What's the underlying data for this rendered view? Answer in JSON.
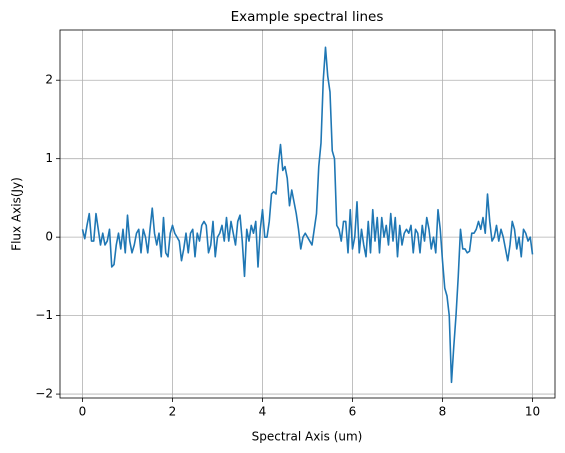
{
  "chart_data": {
    "type": "line",
    "title": "Example spectral lines",
    "xlabel": "Spectral Axis (um)",
    "ylabel": "Flux Axis(Jy)",
    "color": "#1f77b4",
    "grid": true,
    "xlim": [
      -0.5,
      10.5
    ],
    "ylim": [
      -2.05,
      2.64
    ],
    "xticks": [
      0,
      2,
      4,
      6,
      8,
      10
    ],
    "yticks": [
      {
        "value": -2,
        "label": "−2"
      },
      {
        "value": -1,
        "label": "−1"
      },
      0,
      1,
      2
    ],
    "x": [
      0,
      0.05,
      0.1,
      0.15,
      0.2,
      0.25,
      0.3,
      0.35,
      0.4,
      0.45,
      0.5,
      0.55,
      0.6,
      0.65,
      0.7,
      0.75,
      0.8,
      0.85,
      0.9,
      0.95,
      1,
      1.05,
      1.1,
      1.15,
      1.2,
      1.25,
      1.3,
      1.35,
      1.4,
      1.45,
      1.5,
      1.55,
      1.6,
      1.65,
      1.7,
      1.75,
      1.8,
      1.85,
      1.9,
      1.95,
      2,
      2.05,
      2.1,
      2.15,
      2.2,
      2.25,
      2.3,
      2.35,
      2.4,
      2.45,
      2.5,
      2.55,
      2.6,
      2.65,
      2.7,
      2.75,
      2.8,
      2.85,
      2.9,
      2.95,
      3,
      3.05,
      3.1,
      3.15,
      3.2,
      3.25,
      3.3,
      3.35,
      3.4,
      3.45,
      3.5,
      3.55,
      3.6,
      3.65,
      3.7,
      3.75,
      3.8,
      3.85,
      3.9,
      3.95,
      4,
      4.05,
      4.1,
      4.15,
      4.2,
      4.25,
      4.3,
      4.35,
      4.4,
      4.45,
      4.5,
      4.55,
      4.6,
      4.65,
      4.7,
      4.75,
      4.8,
      4.85,
      4.9,
      4.95,
      5,
      5.05,
      5.1,
      5.15,
      5.2,
      5.25,
      5.3,
      5.35,
      5.4,
      5.45,
      5.5,
      5.55,
      5.6,
      5.65,
      5.7,
      5.75,
      5.8,
      5.85,
      5.9,
      5.95,
      6,
      6.05,
      6.1,
      6.15,
      6.2,
      6.25,
      6.3,
      6.35,
      6.4,
      6.45,
      6.5,
      6.55,
      6.6,
      6.65,
      6.7,
      6.75,
      6.8,
      6.85,
      6.9,
      6.95,
      7,
      7.05,
      7.1,
      7.15,
      7.2,
      7.25,
      7.3,
      7.35,
      7.4,
      7.45,
      7.5,
      7.55,
      7.6,
      7.65,
      7.7,
      7.75,
      7.8,
      7.85,
      7.9,
      7.95,
      8,
      8.05,
      8.1,
      8.15,
      8.2,
      8.25,
      8.3,
      8.35,
      8.4,
      8.45,
      8.5,
      8.55,
      8.6,
      8.65,
      8.7,
      8.75,
      8.8,
      8.85,
      8.9,
      8.95,
      9,
      9.05,
      9.1,
      9.15,
      9.2,
      9.25,
      9.3,
      9.35,
      9.4,
      9.45,
      9.5,
      9.55,
      9.6,
      9.65,
      9.7,
      9.75,
      9.8,
      9.85,
      9.9,
      9.95,
      10
    ],
    "values": [
      0.1,
      -0.02,
      0.15,
      0.3,
      -0.05,
      -0.05,
      0.3,
      0.1,
      -0.1,
      0.05,
      -0.1,
      -0.05,
      0.1,
      -0.38,
      -0.35,
      -0.1,
      0.05,
      -0.15,
      0.1,
      -0.2,
      0.28,
      -0.05,
      -0.2,
      -0.1,
      0.05,
      0.1,
      -0.2,
      0.1,
      0.0,
      -0.2,
      0.1,
      0.37,
      0.05,
      -0.1,
      0.05,
      -0.25,
      0.25,
      -0.2,
      -0.25,
      0.05,
      0.15,
      0.05,
      0.0,
      -0.05,
      -0.3,
      -0.15,
      0.05,
      -0.2,
      0.05,
      0.1,
      -0.25,
      0.05,
      -0.05,
      0.15,
      0.2,
      0.15,
      -0.2,
      -0.1,
      0.2,
      -0.25,
      0.0,
      0.05,
      0.15,
      -0.05,
      0.25,
      -0.05,
      0.2,
      0.05,
      -0.1,
      0.2,
      0.28,
      -0.05,
      -0.5,
      0.1,
      -0.05,
      0.15,
      0.05,
      0.2,
      -0.38,
      0.1,
      0.35,
      0.0,
      0.0,
      0.2,
      0.55,
      0.58,
      0.55,
      0.92,
      1.18,
      0.85,
      0.9,
      0.75,
      0.4,
      0.6,
      0.45,
      0.3,
      0.1,
      -0.15,
      0.0,
      0.05,
      0.0,
      -0.05,
      -0.1,
      0.1,
      0.3,
      0.9,
      1.2,
      2.0,
      2.42,
      2.05,
      1.85,
      1.1,
      1.0,
      0.15,
      0.1,
      -0.05,
      0.2,
      0.2,
      -0.2,
      0.35,
      -0.15,
      0.0,
      0.45,
      -0.2,
      0.1,
      -0.1,
      -0.25,
      0.2,
      -0.2,
      0.35,
      -0.05,
      0.25,
      -0.2,
      0.25,
      0.0,
      0.15,
      -0.1,
      0.3,
      -0.05,
      0.25,
      -0.25,
      0.15,
      -0.1,
      0.05,
      0.1,
      0.05,
      0.15,
      -0.2,
      0.1,
      0.05,
      -0.2,
      0.15,
      -0.05,
      0.25,
      0.1,
      -0.15,
      0.0,
      -0.2,
      0.35,
      0.1,
      -0.3,
      -0.65,
      -0.75,
      -1.0,
      -1.85,
      -1.4,
      -1.0,
      -0.5,
      0.1,
      -0.15,
      -0.15,
      -0.2,
      -0.18,
      0.05,
      0.05,
      0.1,
      0.2,
      0.1,
      0.25,
      0.05,
      0.55,
      0.2,
      -0.05,
      0.0,
      0.15,
      -0.05,
      0.1,
      0.0,
      -0.15,
      -0.3,
      -0.1,
      0.2,
      0.1,
      -0.15,
      0.0,
      -0.25,
      0.1,
      0.05,
      -0.05,
      0.0,
      -0.22
    ]
  }
}
